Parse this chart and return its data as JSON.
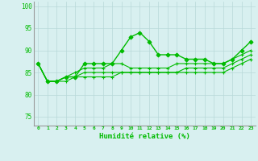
{
  "xlabel": "Humidité relative (%)",
  "background_color": "#d8f0f0",
  "grid_color": "#b8d8d8",
  "line_color": "#00bb00",
  "xlim": [
    -0.5,
    23.5
  ],
  "ylim": [
    73,
    101
  ],
  "yticks": [
    75,
    80,
    85,
    90,
    95,
    100
  ],
  "xticks": [
    0,
    1,
    2,
    3,
    4,
    5,
    6,
    7,
    8,
    9,
    10,
    11,
    12,
    13,
    14,
    15,
    16,
    17,
    18,
    19,
    20,
    21,
    22,
    23
  ],
  "series": [
    [
      87,
      83,
      83,
      84,
      84,
      87,
      87,
      87,
      87,
      90,
      93,
      94,
      92,
      89,
      89,
      89,
      88,
      88,
      88,
      87,
      87,
      88,
      90,
      92
    ],
    [
      87,
      83,
      83,
      84,
      85,
      86,
      86,
      86,
      87,
      87,
      86,
      86,
      86,
      86,
      86,
      87,
      87,
      87,
      87,
      87,
      87,
      88,
      89,
      90
    ],
    [
      87,
      83,
      83,
      84,
      84,
      85,
      85,
      85,
      85,
      85,
      85,
      85,
      85,
      85,
      85,
      85,
      86,
      86,
      86,
      86,
      86,
      87,
      88,
      89
    ],
    [
      87,
      83,
      83,
      83,
      84,
      84,
      84,
      84,
      84,
      85,
      85,
      85,
      85,
      85,
      85,
      85,
      85,
      85,
      85,
      85,
      85,
      86,
      87,
      88
    ]
  ],
  "markers": [
    "D",
    "+",
    "+",
    "+"
  ],
  "markersizes": [
    2.5,
    3.5,
    3.5,
    3.5
  ],
  "linewidths": [
    1.0,
    0.8,
    0.8,
    0.8
  ]
}
